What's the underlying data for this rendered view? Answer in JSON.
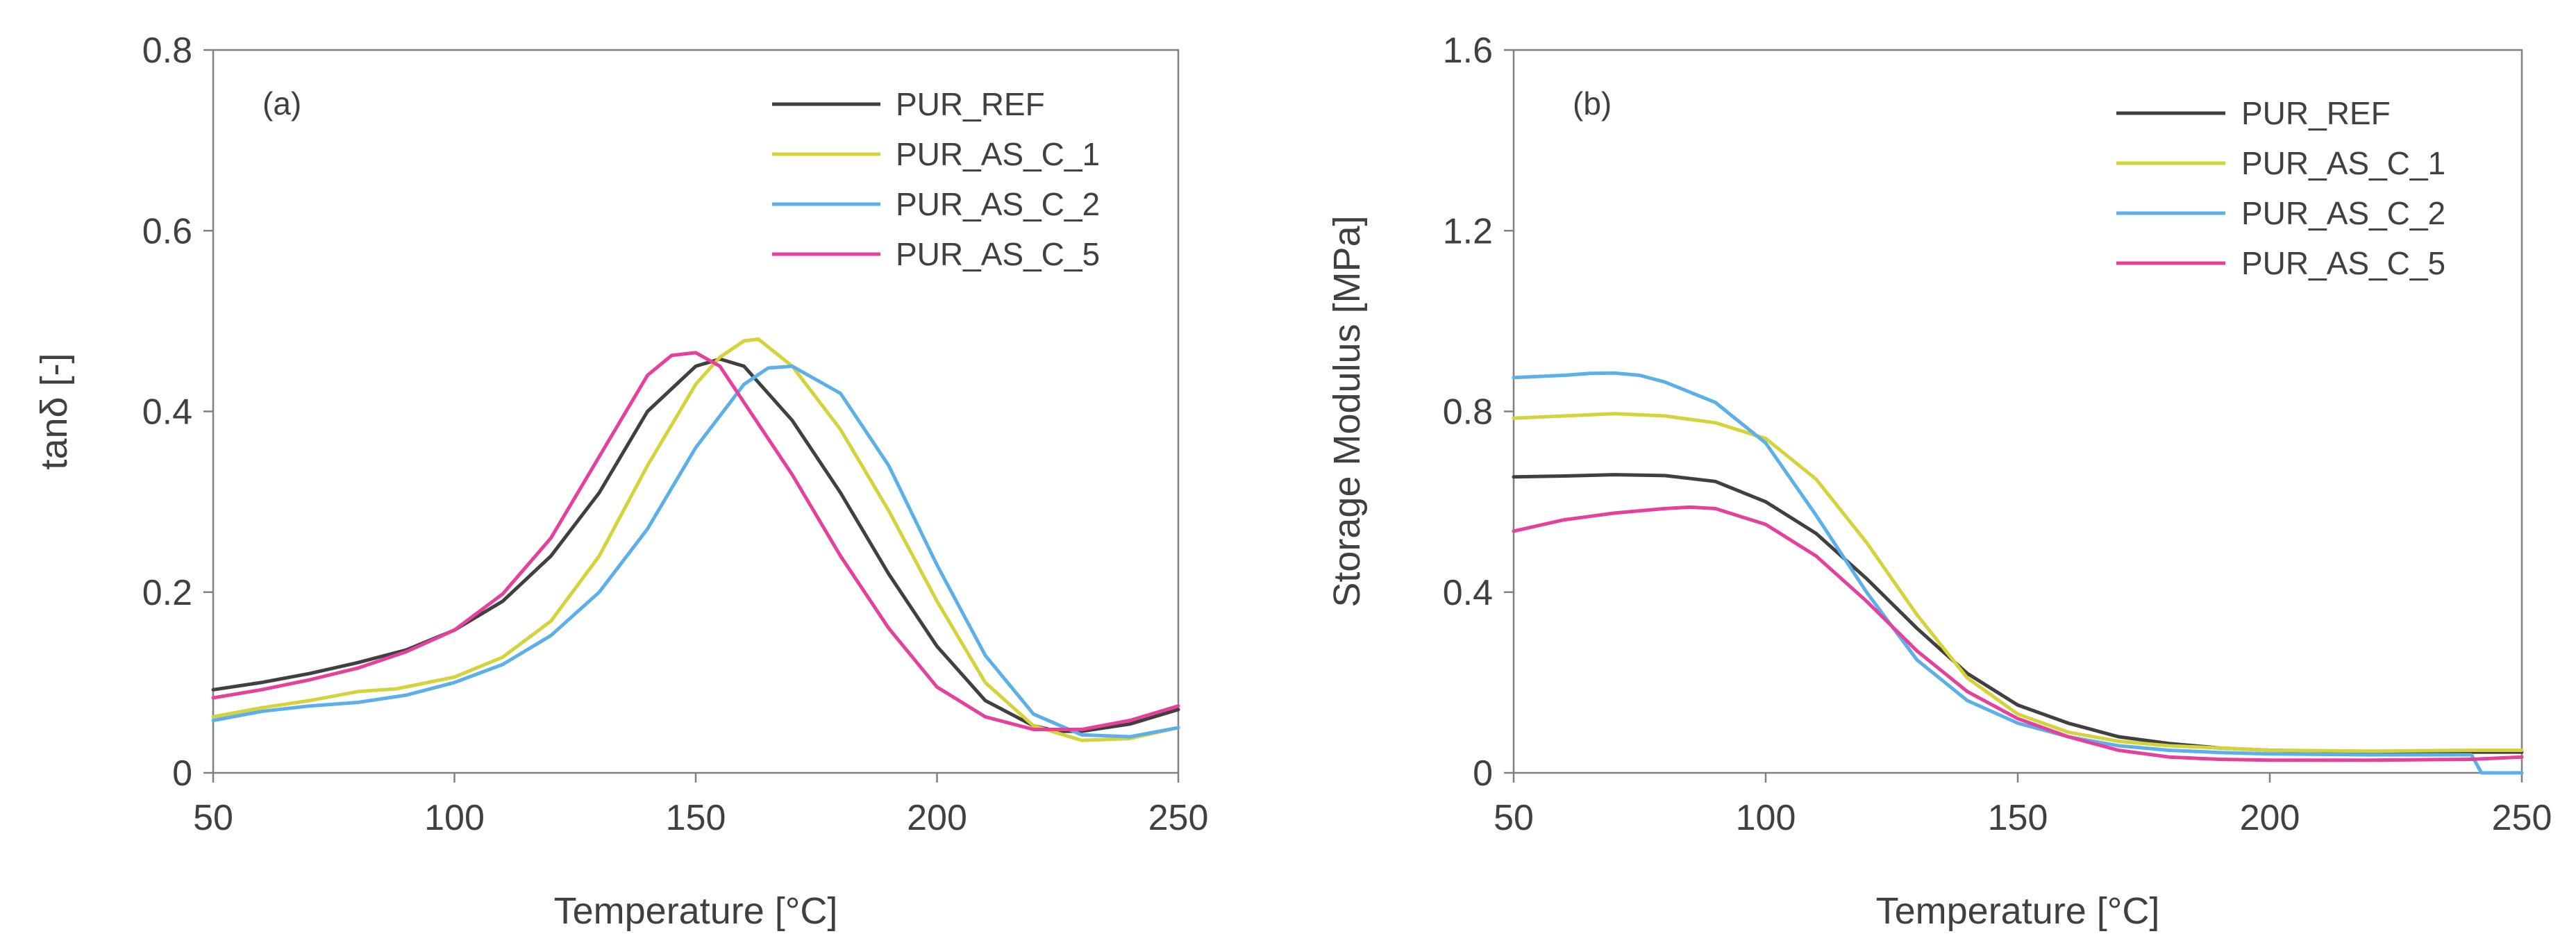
{
  "chart_data": [
    {
      "type": "line",
      "panel_label": "(a)",
      "xlabel": "Temperature [°C]",
      "ylabel": "tanδ [-]",
      "xlim": [
        50,
        250
      ],
      "ylim": [
        0,
        0.8
      ],
      "xticks": [
        50,
        100,
        150,
        200,
        250
      ],
      "yticks": [
        0,
        0.2,
        0.4,
        0.6,
        0.8
      ],
      "xtick_labels": [
        "50",
        "100",
        "150",
        "200",
        "250"
      ],
      "ytick_labels": [
        "0",
        "0.2",
        "0.4",
        "0.6",
        "0.8"
      ],
      "legend_position": "top-right",
      "series": [
        {
          "name": "PUR_REF",
          "color": "#404040",
          "x": [
            50,
            60,
            70,
            80,
            90,
            100,
            110,
            120,
            130,
            140,
            150,
            155,
            160,
            170,
            180,
            190,
            200,
            210,
            220,
            225,
            230,
            240,
            250
          ],
          "y": [
            0.092,
            0.1,
            0.11,
            0.122,
            0.136,
            0.158,
            0.19,
            0.24,
            0.31,
            0.4,
            0.45,
            0.458,
            0.45,
            0.39,
            0.31,
            0.22,
            0.14,
            0.08,
            0.052,
            0.046,
            0.046,
            0.054,
            0.07
          ]
        },
        {
          "name": "PUR_AS_C_1",
          "color": "#d4d43a",
          "x": [
            50,
            60,
            70,
            80,
            88,
            100,
            110,
            120,
            130,
            140,
            150,
            155,
            160,
            163,
            170,
            180,
            190,
            200,
            210,
            220,
            230,
            240,
            250
          ],
          "y": [
            0.062,
            0.072,
            0.08,
            0.09,
            0.093,
            0.106,
            0.128,
            0.168,
            0.24,
            0.34,
            0.43,
            0.46,
            0.478,
            0.48,
            0.45,
            0.38,
            0.29,
            0.19,
            0.1,
            0.052,
            0.036,
            0.038,
            0.05
          ]
        },
        {
          "name": "PUR_AS_C_2",
          "color": "#5bb0ea",
          "x": [
            50,
            60,
            70,
            80,
            90,
            100,
            110,
            120,
            130,
            140,
            150,
            160,
            165,
            170,
            180,
            190,
            200,
            210,
            220,
            230,
            240,
            250
          ],
          "y": [
            0.058,
            0.068,
            0.074,
            0.078,
            0.086,
            0.1,
            0.12,
            0.152,
            0.2,
            0.27,
            0.36,
            0.43,
            0.448,
            0.45,
            0.42,
            0.34,
            0.23,
            0.13,
            0.065,
            0.042,
            0.04,
            0.05
          ]
        },
        {
          "name": "PUR_AS_C_5",
          "color": "#e6409c",
          "x": [
            50,
            60,
            70,
            80,
            90,
            100,
            110,
            120,
            130,
            140,
            145,
            150,
            155,
            160,
            170,
            180,
            190,
            200,
            210,
            220,
            230,
            240,
            250
          ],
          "y": [
            0.083,
            0.092,
            0.103,
            0.116,
            0.134,
            0.158,
            0.198,
            0.26,
            0.35,
            0.44,
            0.462,
            0.465,
            0.45,
            0.41,
            0.33,
            0.24,
            0.16,
            0.095,
            0.062,
            0.048,
            0.048,
            0.058,
            0.074
          ]
        }
      ]
    },
    {
      "type": "line",
      "panel_label": "(b)",
      "xlabel": "Temperature [°C]",
      "ylabel": "Storage Modulus [MPa]",
      "xlim": [
        50,
        250
      ],
      "ylim": [
        0,
        1.6
      ],
      "xticks": [
        50,
        100,
        150,
        200,
        250
      ],
      "yticks": [
        0,
        0.4,
        0.8,
        1.2,
        1.6
      ],
      "xtick_labels": [
        "50",
        "100",
        "150",
        "200",
        "250"
      ],
      "ytick_labels": [
        "0",
        "0.4",
        "0.8",
        "1.2",
        "1.6"
      ],
      "legend_position": "top-right",
      "series": [
        {
          "name": "PUR_REF",
          "color": "#404040",
          "x": [
            50,
            60,
            70,
            80,
            90,
            100,
            110,
            120,
            130,
            140,
            150,
            160,
            170,
            180,
            190,
            200,
            220,
            240,
            250
          ],
          "y": [
            0.655,
            0.657,
            0.66,
            0.658,
            0.645,
            0.6,
            0.53,
            0.43,
            0.32,
            0.22,
            0.15,
            0.11,
            0.08,
            0.065,
            0.055,
            0.05,
            0.047,
            0.046,
            0.046
          ]
        },
        {
          "name": "PUR_AS_C_1",
          "color": "#d4d43a",
          "x": [
            50,
            60,
            70,
            80,
            90,
            100,
            110,
            120,
            130,
            140,
            150,
            160,
            170,
            180,
            190,
            200,
            220,
            240,
            250
          ],
          "y": [
            0.785,
            0.79,
            0.795,
            0.79,
            0.775,
            0.74,
            0.65,
            0.51,
            0.35,
            0.21,
            0.13,
            0.09,
            0.07,
            0.06,
            0.055,
            0.05,
            0.048,
            0.05,
            0.05
          ]
        },
        {
          "name": "PUR_AS_C_2",
          "color": "#5bb0ea",
          "x": [
            50,
            60,
            65,
            70,
            75,
            80,
            90,
            100,
            110,
            120,
            130,
            140,
            150,
            160,
            170,
            180,
            190,
            200,
            220,
            240,
            242,
            250
          ],
          "y": [
            0.875,
            0.88,
            0.884,
            0.885,
            0.88,
            0.865,
            0.82,
            0.73,
            0.57,
            0.4,
            0.25,
            0.16,
            0.11,
            0.08,
            0.06,
            0.05,
            0.045,
            0.042,
            0.04,
            0.04,
            0.0,
            0.0
          ]
        },
        {
          "name": "PUR_AS_C_5",
          "color": "#e6409c",
          "x": [
            50,
            60,
            70,
            80,
            85,
            90,
            100,
            110,
            120,
            130,
            140,
            150,
            160,
            170,
            180,
            190,
            200,
            220,
            240,
            250
          ],
          "y": [
            0.535,
            0.56,
            0.575,
            0.585,
            0.588,
            0.585,
            0.55,
            0.48,
            0.38,
            0.27,
            0.18,
            0.12,
            0.08,
            0.05,
            0.035,
            0.03,
            0.028,
            0.028,
            0.03,
            0.035
          ]
        }
      ]
    }
  ]
}
